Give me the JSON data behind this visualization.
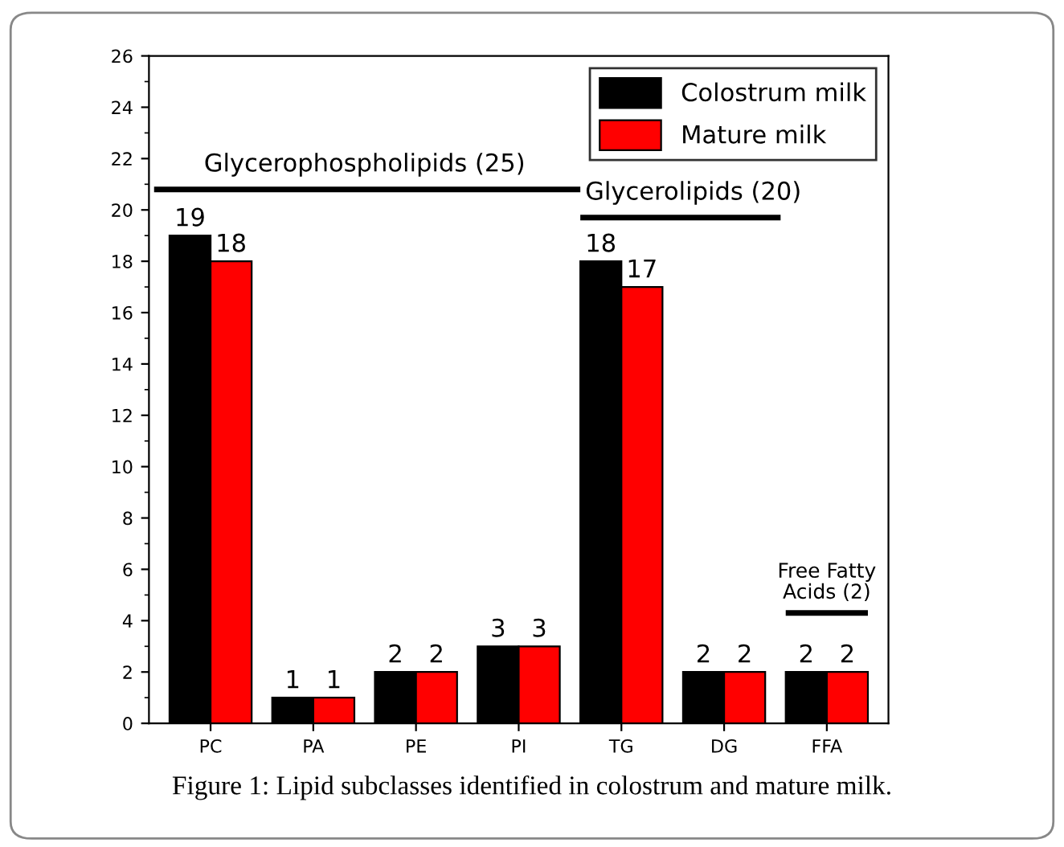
{
  "chart_data": {
    "type": "bar",
    "categories": [
      "PC",
      "PA",
      "PE",
      "PI",
      "TG",
      "DG",
      "FFA"
    ],
    "series": [
      {
        "name": "Colostrum milk",
        "color": "#000000",
        "values": [
          19,
          1,
          2,
          3,
          18,
          2,
          2
        ]
      },
      {
        "name": "Mature milk",
        "color": "#ff0000",
        "values": [
          18,
          1,
          2,
          3,
          17,
          2,
          2
        ]
      }
    ],
    "ylim": [
      0,
      26
    ],
    "yticks": [
      0,
      2,
      4,
      6,
      8,
      10,
      12,
      14,
      16,
      18,
      20,
      22,
      24,
      26
    ],
    "data_labels": true,
    "legend": "top right",
    "grid": false,
    "annotations": [
      "Glycerophospholipids (25)",
      "Glycerolipids (20)",
      "Free Fatty\nAcids (2)",
      "Figure 1: Lipid subclasses identified in colostrum and mature milk."
    ]
  }
}
